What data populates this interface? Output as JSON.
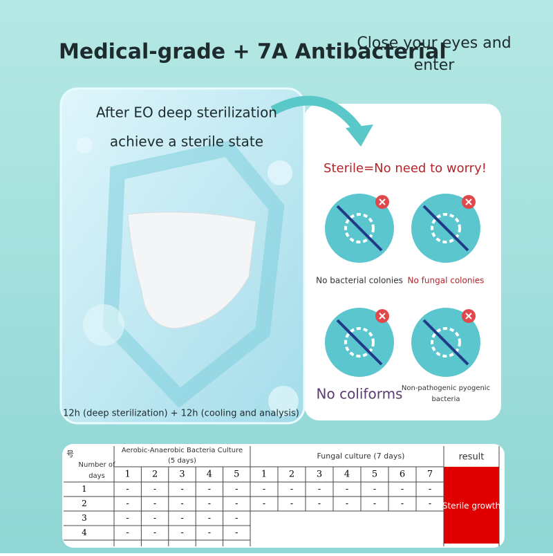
{
  "header": {
    "title": "Medical-grade + 7A Antibacterial",
    "side_text": "Close your eyes and enter"
  },
  "left_card": {
    "line1": "After EO deep sterilization",
    "line2": "achieve a sterile state",
    "footer": "12h (deep sterilization) + 12h (cooling and analysis)"
  },
  "right_card": {
    "heading": "Sterile=No need to worry!",
    "items": [
      "No bacterial colonies",
      "No fungal colonies",
      "No coliforms",
      "Non-pathogenic pyogenic bacteria"
    ]
  },
  "table": {
    "corner": "号",
    "row_header": "Number of days",
    "group1": "Aerobic-Anaerobic Bacteria Culture (5 days)",
    "group2": "Fungal culture (7 days)",
    "result_header": "result",
    "group1_days": [
      1,
      2,
      3,
      4,
      5
    ],
    "group2_days": [
      1,
      2,
      3,
      4,
      5,
      6,
      7
    ],
    "rows": [
      {
        "label": "1",
        "cells": [
          "-",
          "-",
          "-",
          "-",
          "-",
          "-",
          "-",
          "-",
          "-",
          "-",
          "-",
          "-"
        ]
      },
      {
        "label": "2",
        "cells": [
          "-",
          "-",
          "-",
          "-",
          "-",
          "-",
          "-",
          "-",
          "-",
          "-",
          "-",
          "-"
        ]
      },
      {
        "label": "3",
        "cells": [
          "-",
          "-",
          "-",
          "-",
          "-"
        ]
      },
      {
        "label": "4",
        "cells": [
          "-",
          "-",
          "-",
          "-",
          "-"
        ]
      }
    ],
    "result": "Sterile growth"
  }
}
